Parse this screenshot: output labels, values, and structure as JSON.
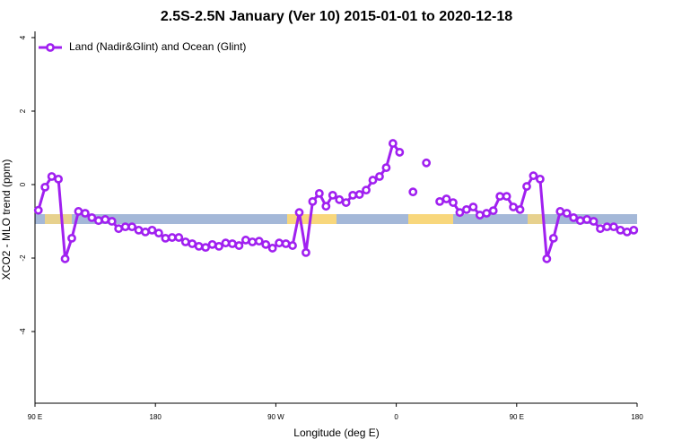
{
  "chart_data": {
    "type": "line",
    "title": "2.5S-2.5N January (Ver 10)   2015-01-01 to 2020-12-18",
    "x_label": "Longitude (deg E)",
    "y_label": "XCO2 - MLO trend (ppm)",
    "x": [
      92.5,
      97.5,
      102.5,
      107.5,
      112.5,
      117.5,
      122.5,
      127.5,
      132.5,
      137.5,
      142.5,
      147.5,
      152.5,
      157.5,
      162.5,
      167.5,
      172.5,
      177.5,
      182.5,
      187.5,
      192.5,
      197.5,
      202.5,
      207.5,
      212.5,
      217.5,
      222.5,
      227.5,
      232.5,
      237.5,
      242.5,
      247.5,
      252.5,
      257.5,
      262.5,
      267.5,
      272.5,
      277.5,
      282.5,
      287.5,
      292.5,
      297.5,
      302.5,
      307.5,
      312.5,
      317.5,
      322.5,
      327.5,
      332.5,
      337.5,
      342.5,
      347.5,
      352.5,
      357.5,
      362.5,
      367.5,
      372.5,
      377.5,
      382.5,
      387.5,
      392.5,
      397.5,
      402.5,
      407.5,
      412.5,
      417.5,
      422.5,
      427.5,
      432.5,
      437.5,
      442.5,
      447.5,
      452.5,
      457.5,
      462.5,
      467.5,
      472.5,
      477.5,
      482.5,
      487.5,
      492.5,
      497.5,
      502.5,
      507.5,
      512.5,
      517.5,
      522.5,
      527.5,
      532.5,
      537.5
    ],
    "series": [
      {
        "name": "Land (Nadir&Glint) and Ocean (Glint)",
        "color": "#a020f0",
        "values": [
          -0.7,
          -0.07,
          0.22,
          0.15,
          -2.02,
          -1.46,
          -0.73,
          -0.78,
          -0.9,
          -0.98,
          -0.95,
          -1.0,
          -1.2,
          -1.15,
          -1.15,
          -1.24,
          -1.29,
          -1.24,
          -1.32,
          -1.46,
          -1.44,
          -1.44,
          -1.56,
          -1.61,
          -1.68,
          -1.71,
          -1.63,
          -1.68,
          -1.59,
          -1.61,
          -1.66,
          -1.51,
          -1.56,
          -1.54,
          -1.63,
          -1.73,
          -1.59,
          -1.61,
          -1.66,
          -0.76,
          -1.85,
          -0.46,
          -0.24,
          -0.59,
          -0.29,
          -0.41,
          -0.49,
          -0.29,
          -0.27,
          -0.15,
          0.12,
          0.22,
          0.46,
          1.12,
          0.88,
          null,
          -0.2,
          null,
          0.59,
          null,
          -0.46,
          -0.39,
          -0.49,
          -0.76,
          -0.68,
          -0.61,
          -0.83,
          -0.78,
          -0.71,
          -0.32,
          -0.32,
          -0.61,
          -0.68,
          -0.05,
          0.24,
          0.15,
          -2.02,
          -1.46,
          -0.73,
          -0.78,
          -0.9,
          -0.98,
          -0.95,
          -1.0,
          -1.2,
          -1.15,
          -1.15,
          -1.24,
          -1.29,
          -1.24
        ]
      }
    ],
    "xlim": [
      90,
      540
    ],
    "xticks": [
      {
        "value": 90,
        "label": "90 E"
      },
      180,
      {
        "value": 270,
        "label": "90 W"
      },
      {
        "value": 360,
        "label": "0"
      },
      {
        "value": 450,
        "label": "90 E"
      },
      {
        "value": 540,
        "label": "180"
      }
    ],
    "ylim": [
      -5.95,
      4.17
    ],
    "yticks": [
      -4,
      -2,
      0,
      2,
      4
    ],
    "legend": "top-left"
  }
}
